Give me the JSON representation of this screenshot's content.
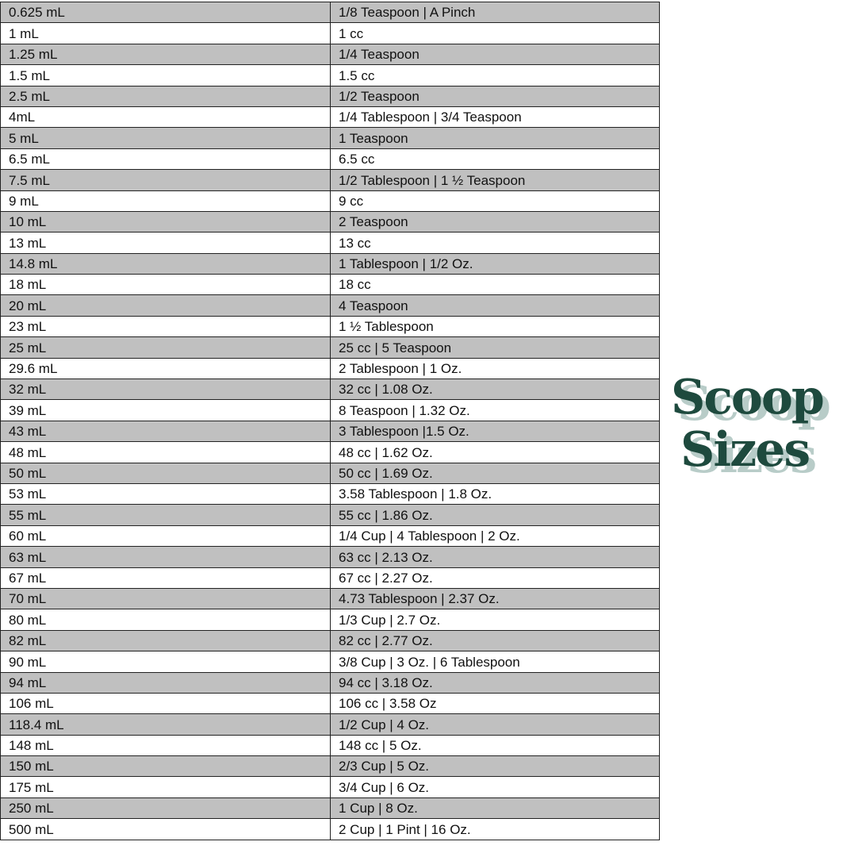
{
  "logo": {
    "line1": "Scoop",
    "line2": "Sizes",
    "color": "#1e4a3e",
    "shadow_color": "#b8ccc8"
  },
  "table": {
    "stripe_color": "#c0c0c0",
    "rows": [
      [
        "0.625 mL",
        "1/8 Teaspoon | A Pinch"
      ],
      [
        "1 mL",
        "1 cc"
      ],
      [
        "1.25 mL",
        "1/4 Teaspoon"
      ],
      [
        "1.5 mL",
        "1.5 cc"
      ],
      [
        "2.5 mL",
        "1/2 Teaspoon"
      ],
      [
        "4mL",
        "1/4 Tablespoon | 3/4 Teaspoon"
      ],
      [
        "5 mL",
        "1 Teaspoon"
      ],
      [
        "6.5 mL",
        "6.5 cc"
      ],
      [
        "7.5 mL",
        "1/2 Tablespoon | 1 ½ Teaspoon"
      ],
      [
        "9 mL",
        "9 cc"
      ],
      [
        "10 mL",
        "2 Teaspoon"
      ],
      [
        "13 mL",
        "13 cc"
      ],
      [
        "14.8 mL",
        "1 Tablespoon | 1/2 Oz."
      ],
      [
        "18 mL",
        "18 cc"
      ],
      [
        "20 mL",
        "4 Teaspoon"
      ],
      [
        "23 mL",
        "1 ½ Tablespoon"
      ],
      [
        "25 mL",
        "25 cc | 5 Teaspoon"
      ],
      [
        "29.6 mL",
        "2 Tablespoon | 1 Oz."
      ],
      [
        "32 mL",
        "32 cc | 1.08 Oz."
      ],
      [
        "39 mL",
        "8 Teaspoon | 1.32 Oz."
      ],
      [
        "43 mL",
        "3 Tablespoon |1.5 Oz."
      ],
      [
        "48 mL",
        "48 cc | 1.62 Oz."
      ],
      [
        "50 mL",
        "50 cc | 1.69 Oz."
      ],
      [
        "53 mL",
        "3.58 Tablespoon | 1.8 Oz."
      ],
      [
        "55 mL",
        "55 cc | 1.86 Oz."
      ],
      [
        "60 mL",
        "1/4 Cup | 4 Tablespoon | 2 Oz."
      ],
      [
        "63 mL",
        "63 cc | 2.13 Oz."
      ],
      [
        "67 mL",
        "67 cc | 2.27 Oz."
      ],
      [
        "70 mL",
        "4.73 Tablespoon | 2.37 Oz."
      ],
      [
        "80 mL",
        "1/3 Cup | 2.7 Oz."
      ],
      [
        "82 mL",
        "82 cc | 2.77 Oz."
      ],
      [
        "90 mL",
        "3/8 Cup | 3 Oz. | 6 Tablespoon"
      ],
      [
        "94 mL",
        "94 cc | 3.18 Oz."
      ],
      [
        "106 mL",
        "106 cc | 3.58 Oz"
      ],
      [
        "118.4 mL",
        "1/2 Cup | 4 Oz."
      ],
      [
        "148 mL",
        "148 cc | 5 Oz."
      ],
      [
        "150 mL",
        "2/3 Cup | 5 Oz."
      ],
      [
        "175 mL",
        "3/4 Cup | 6 Oz."
      ],
      [
        "250 mL",
        "1 Cup | 8 Oz."
      ],
      [
        "500 mL",
        "2 Cup | 1 Pint | 16 Oz."
      ]
    ]
  }
}
